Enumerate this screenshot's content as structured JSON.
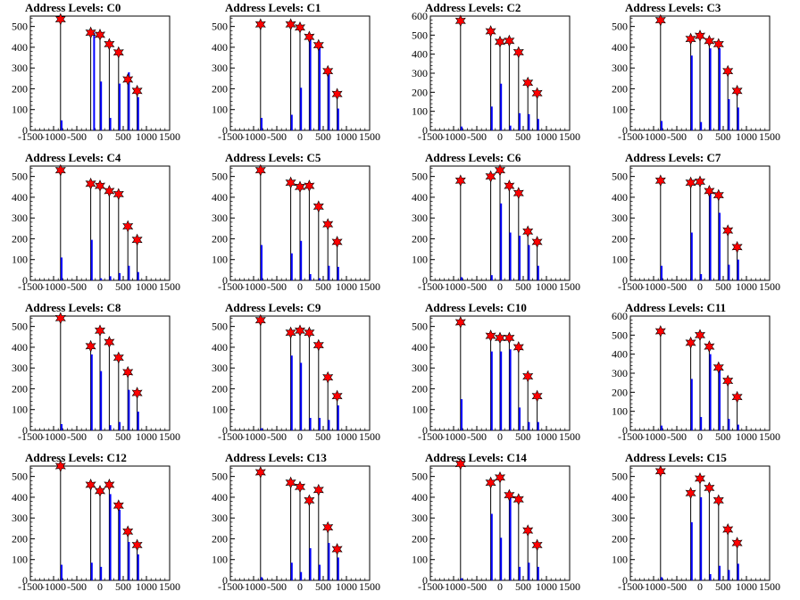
{
  "chart_data": [
    {
      "type": "bar",
      "title": "Address Levels: C0",
      "xlim": [
        -1500,
        1500
      ],
      "ylim": [
        0,
        550
      ],
      "yticks": [
        0,
        100,
        200,
        300,
        400,
        500
      ],
      "xticks": [
        -1500,
        -1000,
        -500,
        0,
        500,
        1000,
        1500
      ],
      "bars": [
        [
          -850,
          48
        ],
        [
          -150,
          470
        ],
        [
          0,
          235
        ],
        [
          200,
          60
        ],
        [
          400,
          225
        ],
        [
          600,
          280
        ],
        [
          800,
          160
        ]
      ],
      "peaks": [
        [
          -850,
          535
        ],
        [
          -200,
          470
        ],
        [
          0,
          460
        ],
        [
          200,
          415
        ],
        [
          400,
          375
        ],
        [
          600,
          245
        ],
        [
          800,
          190
        ]
      ]
    },
    {
      "type": "bar",
      "title": "Address Levels: C1",
      "xlim": [
        -1500,
        1500
      ],
      "ylim": [
        0,
        550
      ],
      "yticks": [
        0,
        100,
        200,
        300,
        400,
        500
      ],
      "xticks": [
        -1500,
        -1000,
        -500,
        0,
        500,
        1000,
        1500
      ],
      "bars": [
        [
          -850,
          60
        ],
        [
          -200,
          75
        ],
        [
          0,
          205
        ],
        [
          200,
          440
        ],
        [
          400,
          400
        ],
        [
          600,
          270
        ],
        [
          800,
          105
        ]
      ],
      "peaks": [
        [
          -850,
          510
        ],
        [
          -200,
          510
        ],
        [
          0,
          495
        ],
        [
          200,
          450
        ],
        [
          400,
          410
        ],
        [
          600,
          285
        ],
        [
          800,
          175
        ]
      ]
    },
    {
      "type": "bar",
      "title": "Address Levels: C2",
      "xlim": [
        -1500,
        1500
      ],
      "ylim": [
        0,
        600
      ],
      "yticks": [
        0,
        100,
        200,
        300,
        400,
        500,
        600
      ],
      "xticks": [
        -1500,
        -1000,
        -500,
        0,
        500,
        1000,
        1500
      ],
      "bars": [
        [
          -850,
          20
        ],
        [
          -200,
          125
        ],
        [
          0,
          245
        ],
        [
          200,
          25
        ],
        [
          400,
          90
        ],
        [
          600,
          85
        ],
        [
          800,
          60
        ]
      ],
      "peaks": [
        [
          -850,
          575
        ],
        [
          -200,
          520
        ],
        [
          0,
          465
        ],
        [
          200,
          470
        ],
        [
          400,
          410
        ],
        [
          600,
          250
        ],
        [
          800,
          195
        ]
      ]
    },
    {
      "type": "bar",
      "title": "Address Levels: C3",
      "xlim": [
        -1500,
        1500
      ],
      "ylim": [
        0,
        550
      ],
      "yticks": [
        0,
        100,
        200,
        300,
        400,
        500
      ],
      "xticks": [
        -1500,
        -1000,
        -500,
        0,
        500,
        1000,
        1500
      ],
      "bars": [
        [
          -850,
          45
        ],
        [
          -200,
          360
        ],
        [
          0,
          40
        ],
        [
          200,
          395
        ],
        [
          400,
          395
        ],
        [
          600,
          150
        ],
        [
          800,
          110
        ]
      ],
      "peaks": [
        [
          -850,
          530
        ],
        [
          -200,
          440
        ],
        [
          0,
          455
        ],
        [
          200,
          430
        ],
        [
          400,
          415
        ],
        [
          600,
          285
        ],
        [
          800,
          190
        ]
      ]
    },
    {
      "type": "bar",
      "title": "Address Levels: C4",
      "xlim": [
        -1500,
        1500
      ],
      "ylim": [
        0,
        550
      ],
      "yticks": [
        0,
        100,
        200,
        300,
        400,
        500
      ],
      "xticks": [
        -1500,
        -1000,
        -500,
        0,
        500,
        1000,
        1500
      ],
      "bars": [
        [
          -850,
          110
        ],
        [
          -200,
          195
        ],
        [
          0,
          10
        ],
        [
          200,
          20
        ],
        [
          400,
          35
        ],
        [
          600,
          70
        ],
        [
          800,
          40
        ]
      ],
      "peaks": [
        [
          -850,
          530
        ],
        [
          -200,
          465
        ],
        [
          0,
          455
        ],
        [
          200,
          430
        ],
        [
          400,
          415
        ],
        [
          600,
          260
        ],
        [
          800,
          195
        ]
      ]
    },
    {
      "type": "bar",
      "title": "Address Levels: C5",
      "xlim": [
        -1500,
        1500
      ],
      "ylim": [
        0,
        550
      ],
      "yticks": [
        0,
        100,
        200,
        300,
        400,
        500
      ],
      "xticks": [
        -1500,
        -1000,
        -500,
        0,
        500,
        1000,
        1500
      ],
      "bars": [
        [
          -850,
          170
        ],
        [
          -200,
          130
        ],
        [
          0,
          190
        ],
        [
          200,
          30
        ],
        [
          400,
          10
        ],
        [
          600,
          70
        ],
        [
          800,
          65
        ]
      ],
      "peaks": [
        [
          -850,
          530
        ],
        [
          -200,
          470
        ],
        [
          0,
          450
        ],
        [
          200,
          455
        ],
        [
          400,
          355
        ],
        [
          600,
          270
        ],
        [
          800,
          185
        ]
      ]
    },
    {
      "type": "bar",
      "title": "Address Levels: C6",
      "xlim": [
        -1500,
        1500
      ],
      "ylim": [
        0,
        550
      ],
      "yticks": [
        0,
        100,
        200,
        300,
        400,
        500
      ],
      "xticks": [
        -1500,
        -1000,
        -500,
        0,
        500,
        1000,
        1500
      ],
      "bars": [
        [
          -850,
          15
        ],
        [
          -200,
          25
        ],
        [
          0,
          370
        ],
        [
          200,
          230
        ],
        [
          400,
          215
        ],
        [
          600,
          170
        ],
        [
          800,
          70
        ]
      ],
      "peaks": [
        [
          -850,
          480
        ],
        [
          -200,
          500
        ],
        [
          0,
          530
        ],
        [
          200,
          455
        ],
        [
          400,
          420
        ],
        [
          600,
          235
        ],
        [
          800,
          185
        ]
      ]
    },
    {
      "type": "bar",
      "title": "Address Levels: C7",
      "xlim": [
        -1500,
        1500
      ],
      "ylim": [
        0,
        550
      ],
      "yticks": [
        0,
        100,
        200,
        300,
        400,
        500
      ],
      "xticks": [
        -1500,
        -1000,
        -500,
        0,
        500,
        1000,
        1500
      ],
      "bars": [
        [
          -850,
          70
        ],
        [
          -200,
          230
        ],
        [
          0,
          30
        ],
        [
          200,
          420
        ],
        [
          400,
          325
        ],
        [
          600,
          75
        ],
        [
          800,
          100
        ]
      ],
      "peaks": [
        [
          -850,
          480
        ],
        [
          -200,
          470
        ],
        [
          0,
          475
        ],
        [
          200,
          430
        ],
        [
          400,
          410
        ],
        [
          600,
          240
        ],
        [
          800,
          160
        ]
      ]
    },
    {
      "type": "bar",
      "title": "Address Levels: C8",
      "xlim": [
        -1500,
        1500
      ],
      "ylim": [
        0,
        550
      ],
      "yticks": [
        0,
        100,
        200,
        300,
        400,
        500
      ],
      "xticks": [
        -1500,
        -1000,
        -500,
        0,
        500,
        1000,
        1500
      ],
      "bars": [
        [
          -850,
          30
        ],
        [
          -200,
          365
        ],
        [
          0,
          285
        ],
        [
          200,
          25
        ],
        [
          400,
          40
        ],
        [
          600,
          195
        ],
        [
          800,
          90
        ]
      ],
      "peaks": [
        [
          -850,
          540
        ],
        [
          -200,
          405
        ],
        [
          0,
          480
        ],
        [
          200,
          425
        ],
        [
          400,
          350
        ],
        [
          600,
          280
        ],
        [
          800,
          180
        ]
      ]
    },
    {
      "type": "bar",
      "title": "Address Levels: C9",
      "xlim": [
        -1500,
        1500
      ],
      "ylim": [
        0,
        550
      ],
      "yticks": [
        0,
        100,
        200,
        300,
        400,
        500
      ],
      "xticks": [
        -1500,
        -1000,
        -500,
        0,
        500,
        1000,
        1500
      ],
      "bars": [
        [
          -850,
          10
        ],
        [
          -200,
          360
        ],
        [
          0,
          325
        ],
        [
          200,
          60
        ],
        [
          400,
          60
        ],
        [
          600,
          50
        ],
        [
          800,
          120
        ]
      ],
      "peaks": [
        [
          -850,
          530
        ],
        [
          -200,
          470
        ],
        [
          0,
          480
        ],
        [
          200,
          470
        ],
        [
          400,
          410
        ],
        [
          600,
          255
        ],
        [
          800,
          165
        ]
      ]
    },
    {
      "type": "bar",
      "title": "Address Levels: C10",
      "xlim": [
        -1500,
        1500
      ],
      "ylim": [
        0,
        550
      ],
      "yticks": [
        0,
        100,
        200,
        300,
        400,
        500
      ],
      "xticks": [
        -1500,
        -1000,
        -500,
        0,
        500,
        1000,
        1500
      ],
      "bars": [
        [
          -850,
          150
        ],
        [
          -200,
          380
        ],
        [
          0,
          380
        ],
        [
          200,
          390
        ],
        [
          400,
          110
        ],
        [
          600,
          40
        ],
        [
          800,
          40
        ]
      ],
      "peaks": [
        [
          -850,
          520
        ],
        [
          -200,
          455
        ],
        [
          0,
          445
        ],
        [
          200,
          445
        ],
        [
          400,
          400
        ],
        [
          600,
          260
        ],
        [
          800,
          165
        ]
      ]
    },
    {
      "type": "bar",
      "title": "Address Levels: C11",
      "xlim": [
        -1500,
        1500
      ],
      "ylim": [
        0,
        600
      ],
      "yticks": [
        0,
        100,
        200,
        300,
        400,
        500,
        600
      ],
      "xticks": [
        -1500,
        -1000,
        -500,
        0,
        500,
        1000,
        1500
      ],
      "bars": [
        [
          -850,
          25
        ],
        [
          -200,
          270
        ],
        [
          0,
          70
        ],
        [
          200,
          400
        ],
        [
          400,
          340
        ],
        [
          600,
          60
        ],
        [
          800,
          30
        ]
      ],
      "peaks": [
        [
          -850,
          520
        ],
        [
          -200,
          460
        ],
        [
          0,
          500
        ],
        [
          200,
          440
        ],
        [
          400,
          330
        ],
        [
          600,
          260
        ],
        [
          800,
          175
        ]
      ]
    },
    {
      "type": "bar",
      "title": "Address Levels: C12",
      "xlim": [
        -1500,
        1500
      ],
      "ylim": [
        0,
        550
      ],
      "yticks": [
        0,
        100,
        200,
        300,
        400,
        500
      ],
      "xticks": [
        -1500,
        -1000,
        -500,
        0,
        500,
        1000,
        1500
      ],
      "bars": [
        [
          -850,
          75
        ],
        [
          -200,
          85
        ],
        [
          0,
          65
        ],
        [
          200,
          415
        ],
        [
          400,
          340
        ],
        [
          600,
          185
        ],
        [
          800,
          125
        ]
      ],
      "peaks": [
        [
          -850,
          550
        ],
        [
          -200,
          460
        ],
        [
          0,
          430
        ],
        [
          200,
          460
        ],
        [
          400,
          360
        ],
        [
          600,
          235
        ],
        [
          800,
          170
        ]
      ]
    },
    {
      "type": "bar",
      "title": "Address Levels: C13",
      "xlim": [
        -1500,
        1500
      ],
      "ylim": [
        0,
        550
      ],
      "yticks": [
        0,
        100,
        200,
        300,
        400,
        500
      ],
      "xticks": [
        -1500,
        -1000,
        -500,
        0,
        500,
        1000,
        1500
      ],
      "bars": [
        [
          -850,
          15
        ],
        [
          -200,
          85
        ],
        [
          0,
          40
        ],
        [
          200,
          155
        ],
        [
          400,
          75
        ],
        [
          600,
          180
        ],
        [
          800,
          110
        ]
      ],
      "peaks": [
        [
          -850,
          520
        ],
        [
          -200,
          470
        ],
        [
          0,
          450
        ],
        [
          200,
          385
        ],
        [
          400,
          435
        ],
        [
          600,
          255
        ],
        [
          800,
          150
        ]
      ]
    },
    {
      "type": "bar",
      "title": "Address Levels: C14",
      "xlim": [
        -1500,
        1500
      ],
      "ylim": [
        0,
        550
      ],
      "yticks": [
        0,
        100,
        200,
        300,
        400,
        500
      ],
      "xticks": [
        -1500,
        -1000,
        -500,
        0,
        500,
        1000,
        1500
      ],
      "bars": [
        [
          -850,
          10
        ],
        [
          -200,
          320
        ],
        [
          0,
          205
        ],
        [
          200,
          400
        ],
        [
          400,
          65
        ],
        [
          600,
          85
        ],
        [
          800,
          65
        ]
      ],
      "peaks": [
        [
          -850,
          560
        ],
        [
          -200,
          470
        ],
        [
          0,
          495
        ],
        [
          200,
          410
        ],
        [
          400,
          390
        ],
        [
          600,
          240
        ],
        [
          800,
          170
        ]
      ]
    },
    {
      "type": "bar",
      "title": "Address Levels: C15",
      "xlim": [
        -1500,
        1500
      ],
      "ylim": [
        0,
        550
      ],
      "yticks": [
        0,
        100,
        200,
        300,
        400,
        500
      ],
      "xticks": [
        -1500,
        -1000,
        -500,
        0,
        500,
        1000,
        1500
      ],
      "bars": [
        [
          -850,
          15
        ],
        [
          -200,
          280
        ],
        [
          0,
          400
        ],
        [
          200,
          30
        ],
        [
          400,
          70
        ],
        [
          600,
          50
        ],
        [
          800,
          80
        ]
      ],
      "peaks": [
        [
          -850,
          525
        ],
        [
          -200,
          420
        ],
        [
          0,
          490
        ],
        [
          200,
          445
        ],
        [
          400,
          385
        ],
        [
          600,
          245
        ],
        [
          800,
          180
        ]
      ]
    }
  ],
  "colors": {
    "bar": "#0000ff",
    "peak_fill": "#ff0000",
    "peak_stroke": "#000000",
    "axis": "#000000",
    "background": "#ffffff"
  }
}
